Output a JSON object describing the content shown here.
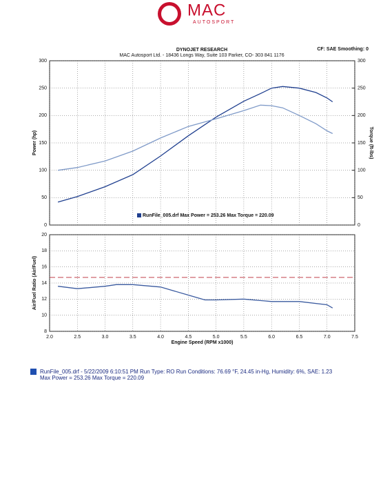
{
  "header": {
    "logo": "MAC",
    "logo_sub": "AUTOSPORT",
    "title": "DYNOJET RESEARCH",
    "address": "MAC Autosport Ltd. - 18436 Longs Way, Suite 103 Parker, CO- 303 841 1176",
    "settings": "CF: SAE  Smoothing: 0"
  },
  "chart_data": [
    {
      "type": "line",
      "y_label": "Power (hp)",
      "y2_label": "Torque (ft-lbs)",
      "annotation": "RunFile_005.drf Max Power = 253.26    Max Torque = 220.09",
      "x": [
        2.15,
        2.5,
        3.0,
        3.5,
        4.0,
        4.5,
        5.0,
        5.5,
        5.8,
        6.0,
        6.2,
        6.5,
        6.8,
        7.0,
        7.1
      ],
      "series": [
        {
          "color": "#1f3f8f",
          "values": [
            42,
            52,
            70,
            92,
            126,
            163,
            197,
            226,
            240,
            250,
            253,
            250,
            242,
            232,
            225
          ]
        },
        {
          "color": "#7f9ac8",
          "axis": "y2",
          "values": [
            100,
            105,
            117,
            135,
            159,
            180,
            194,
            209,
            219,
            218,
            214,
            200,
            185,
            172,
            167
          ]
        }
      ],
      "xlim": [
        2,
        7.5
      ],
      "xticks": [
        2,
        2.5,
        3,
        3.5,
        4,
        4.5,
        5,
        5.5,
        6,
        6.5,
        7,
        7.5
      ],
      "ylim": [
        0,
        300
      ],
      "yticks": [
        0,
        50,
        100,
        150,
        200,
        250,
        300
      ],
      "y2lim": [
        0,
        300
      ],
      "y2ticks": [
        0,
        50,
        100,
        150,
        200,
        250,
        300
      ],
      "grid": true
    },
    {
      "type": "line",
      "x_label": "Engine Speed (RPM x1000)",
      "y_label": "Air/Fuel Ratio (Air/Fuel)",
      "x": [
        2.15,
        2.5,
        3.0,
        3.2,
        3.5,
        4.0,
        4.5,
        4.8,
        5.0,
        5.5,
        6.0,
        6.5,
        7.0,
        7.1
      ],
      "series": [
        {
          "color": "#3a5a9f",
          "values": [
            13.6,
            13.3,
            13.6,
            13.8,
            13.8,
            13.5,
            12.5,
            11.9,
            11.9,
            12.0,
            11.7,
            11.7,
            11.3,
            10.9
          ]
        }
      ],
      "reference_line": {
        "value": 14.7,
        "color": "#c0404a"
      },
      "xlim": [
        2,
        7.5
      ],
      "xticks": [
        {
          "value": 2,
          "label": "2.0"
        },
        2.5,
        {
          "value": 3,
          "label": "3.0"
        },
        3.5,
        {
          "value": 4,
          "label": "4.0"
        },
        4.5,
        {
          "value": 5,
          "label": "5.0"
        },
        5.5,
        {
          "value": 6,
          "label": "6.0"
        },
        6.5,
        {
          "value": 7,
          "label": "7.0"
        },
        7.5
      ],
      "ylim": [
        8,
        20
      ],
      "yticks": [
        8,
        10,
        12,
        14,
        16,
        18,
        20
      ],
      "grid": true
    }
  ],
  "footer": {
    "line1": "RunFile_005.drf - 5/22/2009 6:10:51 PM  Run Type: RO  Run Conditions: 76.69 °F, 24.45 in-Hg,  Humidity:  6%,  SAE: 1.23",
    "line2": "Max Power = 253.26  Max Torque = 220.09"
  }
}
